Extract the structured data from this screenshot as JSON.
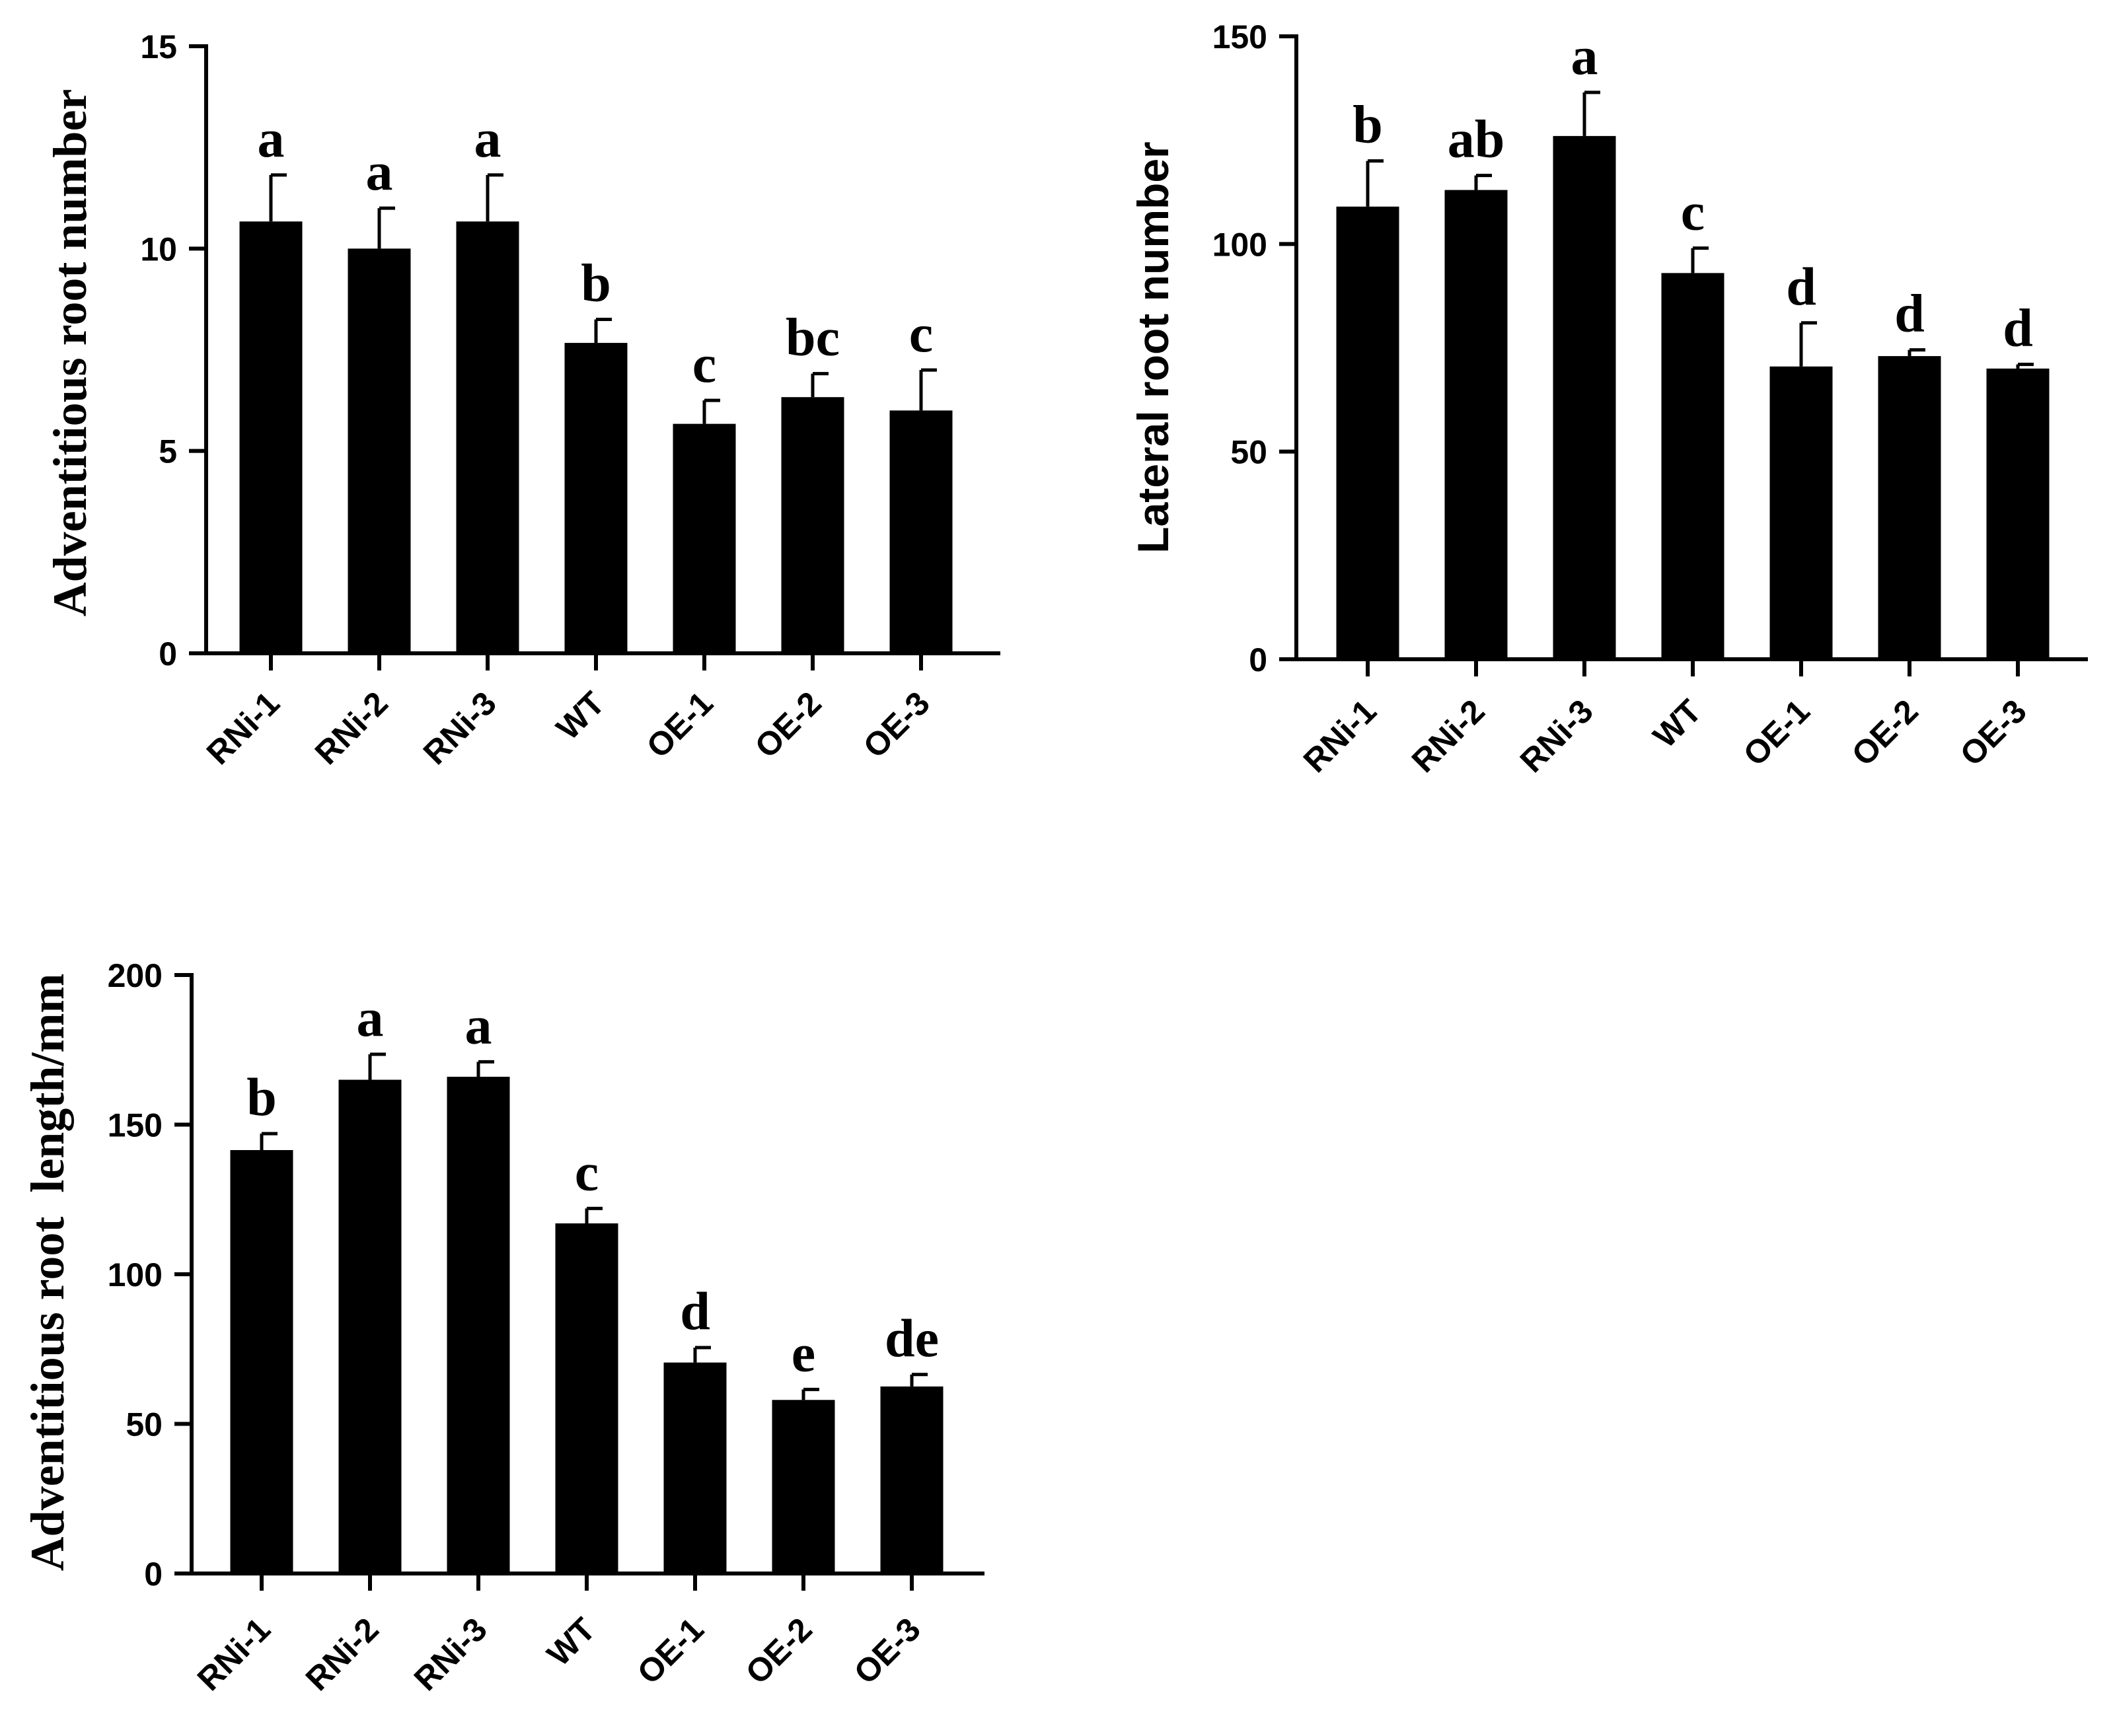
{
  "chart_data": [
    {
      "type": "bar",
      "title": "",
      "xlabel": "",
      "ylabel": "Adventitious root number",
      "ylim": [
        0,
        15
      ],
      "yticks": [
        "0",
        "5",
        "10",
        "15"
      ],
      "categories": [
        "RNi-1",
        "RNi-2",
        "RNi-3",
        "WT",
        "OE-1",
        "OE-2",
        "OE-3"
      ],
      "values": [
        10.67,
        10.0,
        10.67,
        7.67,
        5.67,
        6.33,
        6.0
      ],
      "errors": [
        1.15,
        1.0,
        1.15,
        0.58,
        0.58,
        0.58,
        1.0
      ],
      "significance": [
        "a",
        "a",
        "a",
        "b",
        "c",
        "bc",
        "c"
      ]
    },
    {
      "type": "bar",
      "title": "",
      "xlabel": "",
      "ylabel": "Lateral root number",
      "ylim": [
        0,
        150
      ],
      "yticks": [
        "0",
        "50",
        "100",
        "150"
      ],
      "categories": [
        "RNi-1",
        "RNi-2",
        "RNi-3",
        "WT",
        "OE-1",
        "OE-2",
        "OE-3"
      ],
      "values": [
        109,
        113,
        126,
        93,
        70.5,
        73,
        70
      ],
      "errors": [
        11,
        3.5,
        10.5,
        6,
        10.5,
        1.5,
        1
      ],
      "significance": [
        "b",
        "ab",
        "a",
        "c",
        "d",
        "d",
        "d"
      ]
    },
    {
      "type": "bar",
      "title": "",
      "xlabel": "",
      "ylabel": "Adventitious root  length/mm",
      "ylim": [
        0,
        200
      ],
      "yticks": [
        "0",
        "50",
        "100",
        "150",
        "200"
      ],
      "categories": [
        "RNi-1",
        "RNi-2",
        "RNi-3",
        "WT",
        "OE-1",
        "OE-2",
        "OE-3"
      ],
      "values": [
        141.5,
        165,
        166,
        117,
        70.5,
        58,
        62.5
      ],
      "errors": [
        5.5,
        8.5,
        5,
        5,
        5,
        3.5,
        4
      ],
      "significance": [
        "b",
        "a",
        "a",
        "c",
        "d",
        "e",
        "de"
      ]
    }
  ]
}
